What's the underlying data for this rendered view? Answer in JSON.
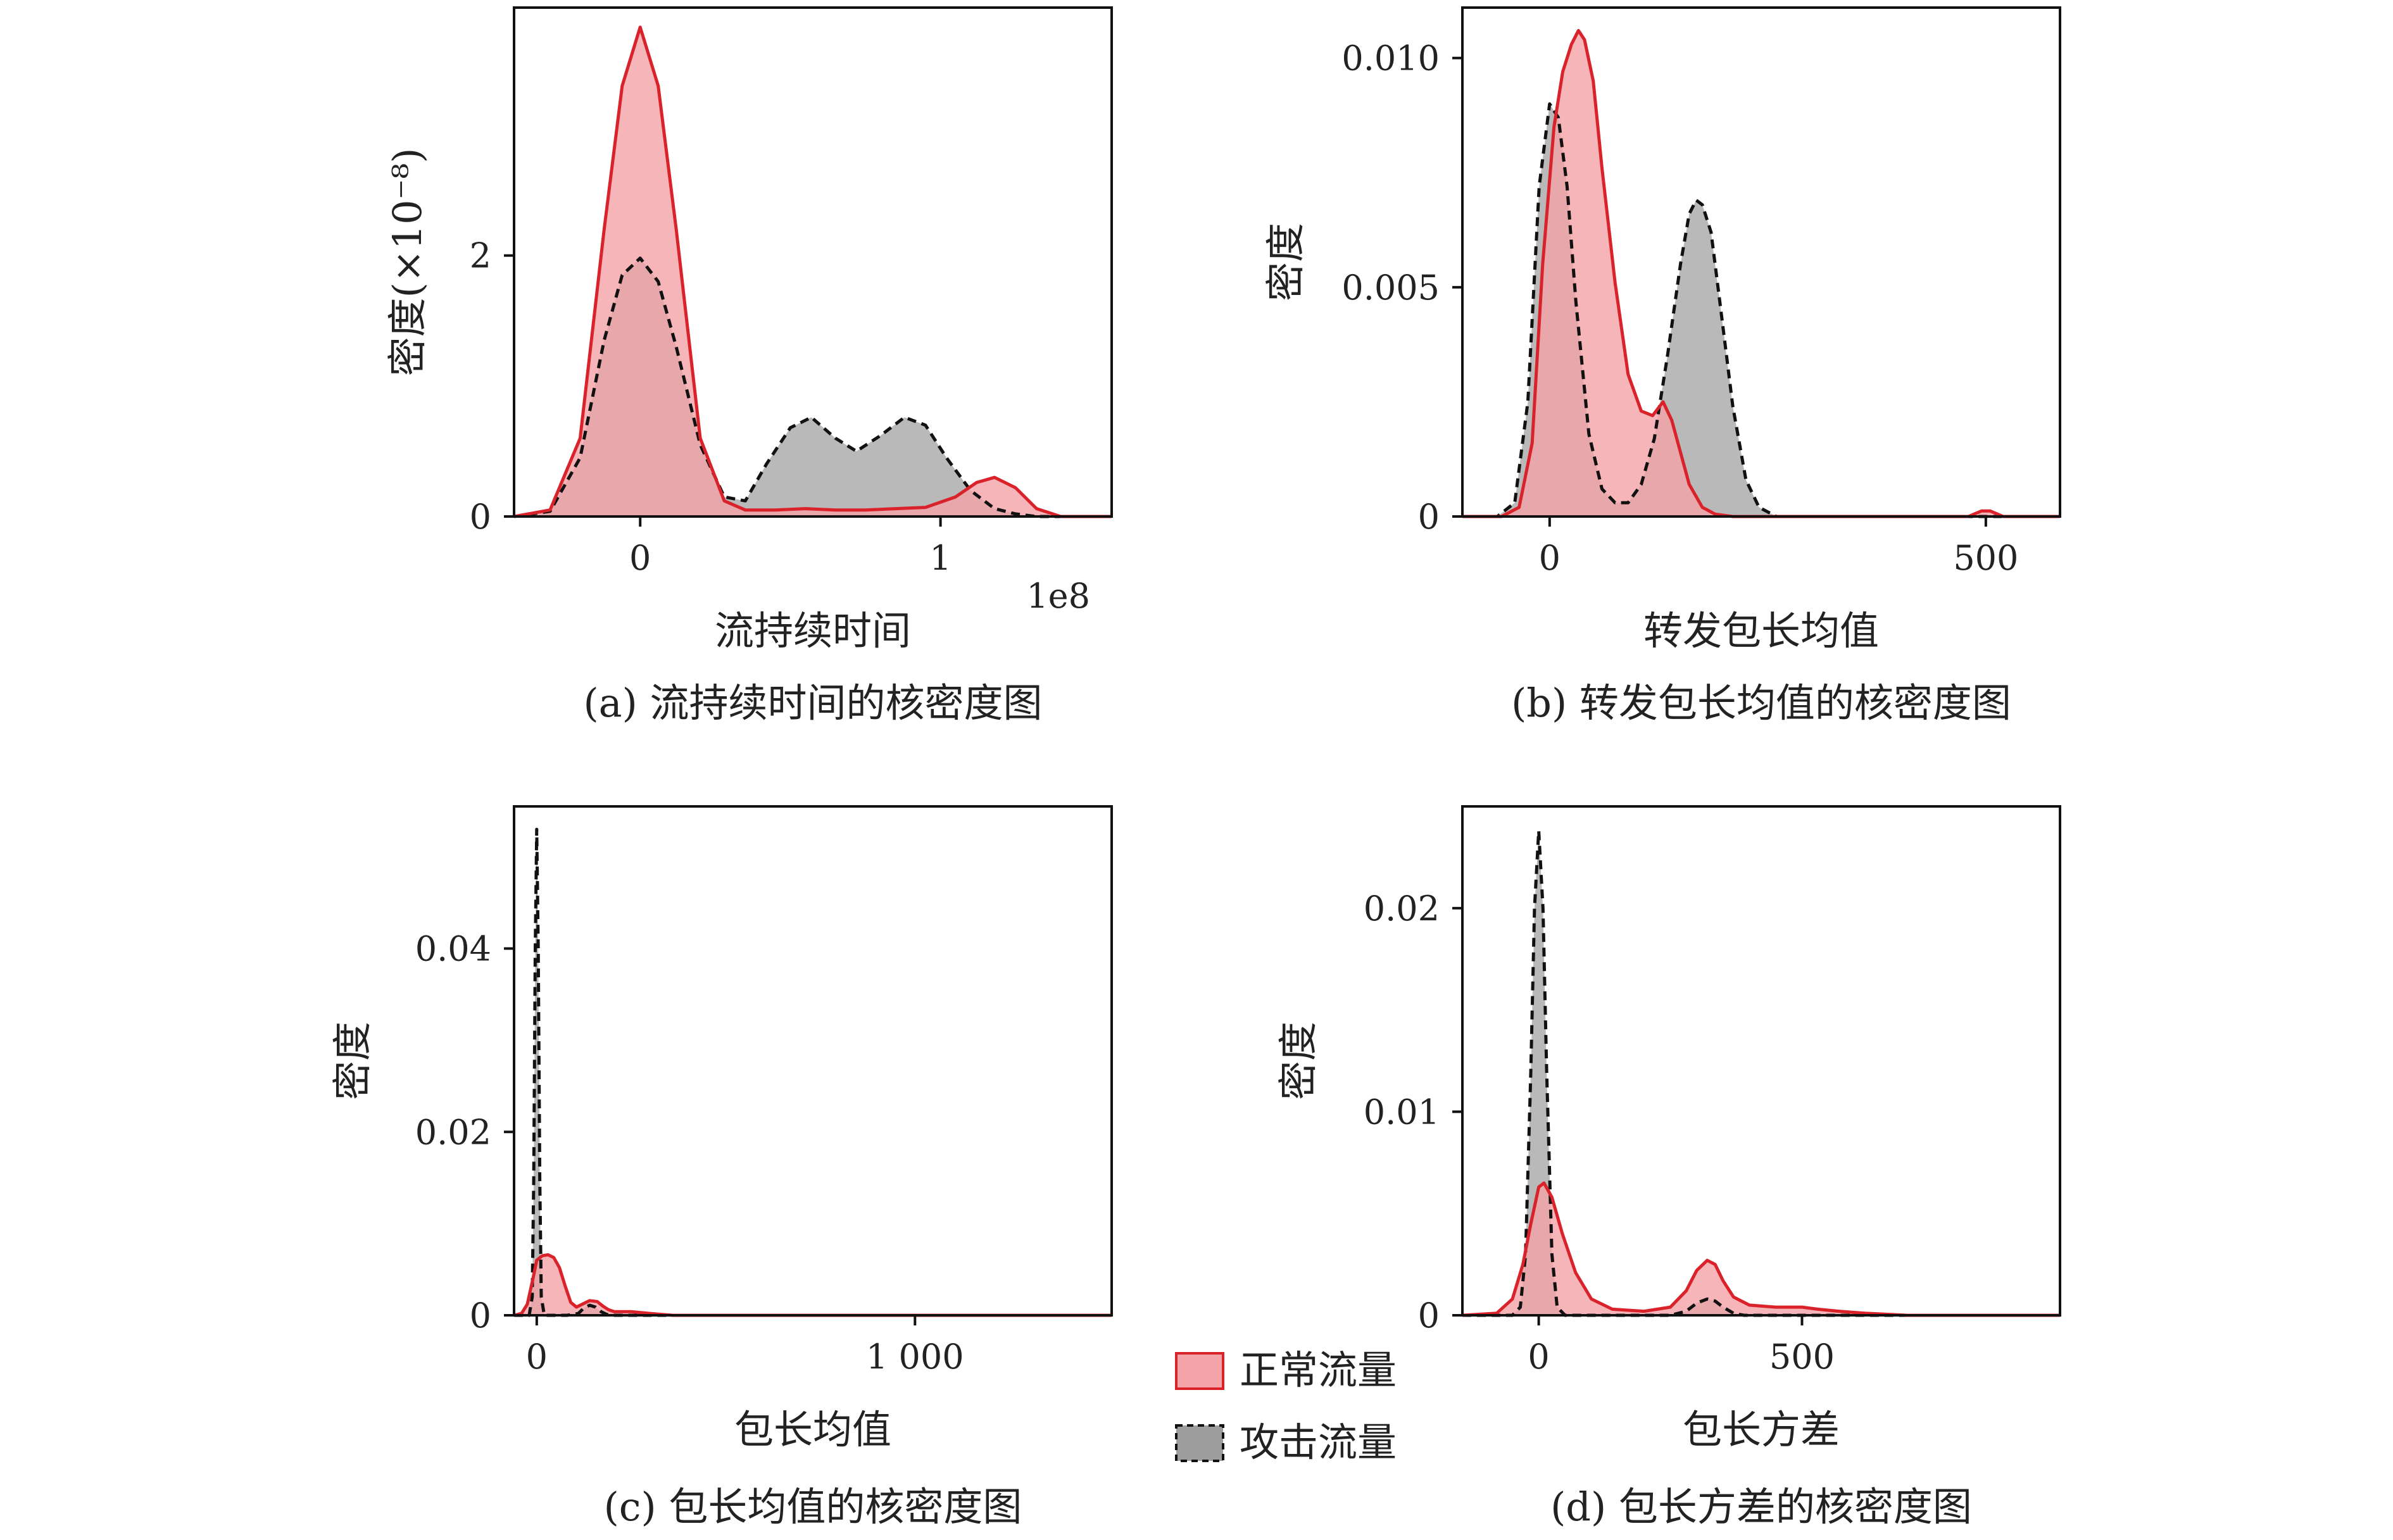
{
  "colors": {
    "normal_fill": "#f4a3a8",
    "normal_line": "#d9222a",
    "attack_fill": "#9e9e9e",
    "attack_line": "#111111"
  },
  "legend": {
    "normal_label": "正常流量",
    "attack_label": "攻击流量"
  },
  "chart_data": [
    {
      "type": "area",
      "panel": "a",
      "caption": "(a) 流持续时间的核密度图",
      "xlabel": "流持续时间",
      "ylabel": "密度(×10⁻⁸)",
      "x_offset_label": "1e8",
      "xlim": [
        -0.42,
        1.57
      ],
      "ylim": [
        0,
        3.9
      ],
      "xticks": [
        0,
        1
      ],
      "xtick_labels": [
        "0",
        "1"
      ],
      "yticks": [
        0,
        2
      ],
      "ytick_labels": [
        "0",
        "2"
      ],
      "series": [
        {
          "name": "正常流量",
          "x": [
            -0.42,
            -0.3,
            -0.2,
            -0.12,
            -0.06,
            0.0,
            0.06,
            0.12,
            0.2,
            0.28,
            0.35,
            0.45,
            0.55,
            0.65,
            0.75,
            0.85,
            0.95,
            1.05,
            1.12,
            1.18,
            1.25,
            1.32,
            1.4,
            1.57
          ],
          "y": [
            0,
            0.05,
            0.6,
            2.2,
            3.3,
            3.75,
            3.3,
            2.2,
            0.6,
            0.12,
            0.05,
            0.05,
            0.06,
            0.05,
            0.05,
            0.06,
            0.07,
            0.15,
            0.26,
            0.3,
            0.22,
            0.06,
            0,
            0
          ]
        },
        {
          "name": "攻击流量",
          "x": [
            -0.42,
            -0.3,
            -0.2,
            -0.12,
            -0.06,
            0.0,
            0.06,
            0.12,
            0.2,
            0.28,
            0.35,
            0.42,
            0.5,
            0.57,
            0.65,
            0.72,
            0.8,
            0.88,
            0.95,
            1.02,
            1.1,
            1.18,
            1.25,
            1.32,
            1.4,
            1.57
          ],
          "y": [
            0,
            0.04,
            0.45,
            1.35,
            1.85,
            1.98,
            1.8,
            1.3,
            0.55,
            0.15,
            0.12,
            0.4,
            0.68,
            0.76,
            0.6,
            0.5,
            0.62,
            0.76,
            0.7,
            0.45,
            0.2,
            0.06,
            0.02,
            0,
            0,
            0
          ]
        }
      ]
    },
    {
      "type": "area",
      "panel": "b",
      "caption": "(b) 转发包长均值的核密度图",
      "xlabel": "转发包长均值",
      "ylabel": "密度",
      "xlim": [
        -100,
        585
      ],
      "ylim": [
        0,
        0.0111
      ],
      "xticks": [
        0,
        500
      ],
      "xtick_labels": [
        "0",
        "500"
      ],
      "yticks": [
        0,
        0.005,
        0.01
      ],
      "ytick_labels": [
        "0",
        "0.005",
        "0.010"
      ],
      "series": [
        {
          "name": "正常流量",
          "x": [
            -100,
            -55,
            -35,
            -20,
            -8,
            5,
            15,
            25,
            33,
            40,
            50,
            60,
            75,
            90,
            105,
            118,
            130,
            140,
            150,
            160,
            175,
            190,
            210,
            250,
            350,
            480,
            495,
            505,
            520,
            585
          ],
          "y": [
            0,
            0,
            0.0002,
            0.0016,
            0.0055,
            0.0085,
            0.0097,
            0.0103,
            0.0106,
            0.0104,
            0.0095,
            0.0076,
            0.0051,
            0.0031,
            0.0023,
            0.0022,
            0.0025,
            0.0021,
            0.0014,
            0.0007,
            0.0002,
            5e-05,
            0,
            0,
            0,
            0,
            0.00012,
            0.00012,
            0,
            0
          ]
        },
        {
          "name": "攻击流量",
          "x": [
            -100,
            -60,
            -40,
            -25,
            -12,
            0,
            10,
            20,
            30,
            45,
            60,
            75,
            90,
            105,
            120,
            135,
            150,
            160,
            168,
            175,
            185,
            195,
            210,
            225,
            240,
            260,
            585
          ],
          "y": [
            0,
            0,
            0.0003,
            0.0025,
            0.0072,
            0.009,
            0.0087,
            0.0072,
            0.0047,
            0.0018,
            0.0006,
            0.0003,
            0.0003,
            0.0007,
            0.0017,
            0.0035,
            0.0055,
            0.0066,
            0.0069,
            0.0068,
            0.0062,
            0.0047,
            0.0024,
            0.0008,
            0.0002,
            0,
            0
          ]
        }
      ]
    },
    {
      "type": "area",
      "panel": "c",
      "caption": "(c) 包长均值的核密度图",
      "xlabel": "包长均值",
      "ylabel": "密度",
      "xlim": [
        -60,
        1520
      ],
      "ylim": [
        0,
        0.0555
      ],
      "xticks": [
        0,
        1000
      ],
      "xtick_labels": [
        "0",
        "1 000"
      ],
      "yticks": [
        0,
        0.02,
        0.04
      ],
      "ytick_labels": [
        "0",
        "0.02",
        "0.04"
      ],
      "series": [
        {
          "name": "正常流量",
          "x": [
            -60,
            -40,
            -25,
            -10,
            0,
            15,
            30,
            45,
            60,
            75,
            90,
            105,
            120,
            140,
            160,
            175,
            190,
            205,
            225,
            250,
            275,
            300,
            330,
            360,
            1520
          ],
          "y": [
            0,
            0.0002,
            0.0012,
            0.004,
            0.006,
            0.0065,
            0.0066,
            0.0063,
            0.0052,
            0.0032,
            0.0014,
            0.0009,
            0.0012,
            0.0016,
            0.0015,
            0.001,
            0.0006,
            0.0004,
            0.0004,
            0.0004,
            0.0003,
            0.0002,
            0.0001,
            0,
            0
          ]
        },
        {
          "name": "攻击流量",
          "x": [
            -60,
            -20,
            -12,
            -8,
            -4,
            0,
            4,
            8,
            12,
            20,
            40,
            80,
            110,
            125,
            140,
            155,
            170,
            185,
            200,
            1520
          ],
          "y": [
            0,
            0,
            0.002,
            0.015,
            0.04,
            0.053,
            0.04,
            0.015,
            0.002,
            0,
            0,
            0,
            0.0002,
            0.0008,
            0.0011,
            0.0009,
            0.0004,
            0.0001,
            0,
            0
          ]
        }
      ]
    },
    {
      "type": "area",
      "panel": "d",
      "caption": "(d) 包长方差的核密度图",
      "xlabel": "包长方差",
      "ylabel": "密度",
      "xlim": [
        -145,
        990
      ],
      "ylim": [
        0,
        0.025
      ],
      "xticks": [
        0,
        500
      ],
      "xtick_labels": [
        "0",
        "500"
      ],
      "yticks": [
        0,
        0.01,
        0.02
      ],
      "ytick_labels": [
        "0",
        "0.01",
        "0.02"
      ],
      "series": [
        {
          "name": "正常流量",
          "x": [
            -145,
            -80,
            -50,
            -30,
            -15,
            0,
            10,
            25,
            45,
            70,
            100,
            140,
            200,
            250,
            280,
            300,
            320,
            335,
            350,
            370,
            400,
            450,
            500,
            530,
            570,
            620,
            700,
            990
          ],
          "y": [
            0,
            0.0001,
            0.0008,
            0.0025,
            0.0045,
            0.0063,
            0.0065,
            0.0058,
            0.004,
            0.0021,
            0.0008,
            0.0003,
            0.0002,
            0.0004,
            0.0012,
            0.0022,
            0.0027,
            0.0025,
            0.0017,
            0.0009,
            0.0005,
            0.0004,
            0.0004,
            0.0003,
            0.0002,
            0.0001,
            0,
            0
          ]
        },
        {
          "name": "攻击流量",
          "x": [
            -145,
            -50,
            -35,
            -25,
            -15,
            -8,
            0,
            8,
            15,
            25,
            35,
            50,
            250,
            280,
            300,
            320,
            335,
            350,
            370,
            390,
            990
          ],
          "y": [
            0,
            0,
            0.0004,
            0.003,
            0.012,
            0.02,
            0.0238,
            0.02,
            0.012,
            0.003,
            0.0004,
            0,
            0,
            0.0002,
            0.0006,
            0.0008,
            0.0007,
            0.0004,
            0.0001,
            0,
            0
          ]
        }
      ]
    }
  ]
}
